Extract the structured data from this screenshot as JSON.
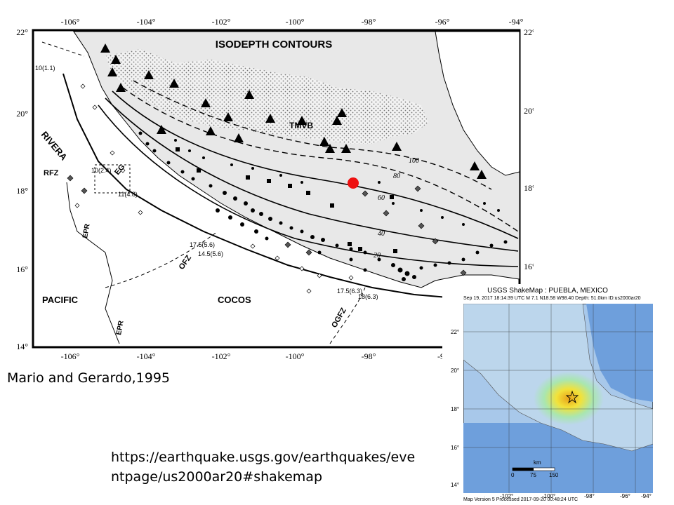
{
  "map_main": {
    "title": "ISODEPTH CONTOURS",
    "top_lon_ticks": [
      "-106°",
      "-104°",
      "-102°",
      "-100°",
      "-98°",
      "-96°",
      "-94°"
    ],
    "bottom_lon_ticks": [
      "-106°",
      "-104°",
      "-102°",
      "-100°",
      "-98°",
      "-9"
    ],
    "left_lat_ticks": [
      "22°",
      "20°",
      "18°",
      "16°",
      "14°"
    ],
    "right_lat_ticks": [
      "22°",
      "20°",
      "18°",
      "16°"
    ],
    "region_labels": {
      "tmvb": "TMVB",
      "rivera": "RIVERA",
      "rfz": "RFZ",
      "eg": "EG",
      "epr_north": "EPR",
      "epr_south": "EPR",
      "ofz": "OFZ",
      "ogfz": "OGFZ",
      "pacific": "PACIFIC",
      "cocos": "COCOS"
    },
    "plate_age_labels": {
      "a1": "10(1.1)",
      "a2": "10(2.4)",
      "a3": "11(4.8)",
      "a4": "17.5(5.6)",
      "a5": "14.5(5.6)",
      "a6": "17.5(6.3)",
      "a7": "18(6.3)"
    },
    "contour_labels": [
      "20",
      "40",
      "60",
      "80",
      "100"
    ],
    "marker_color": "#ee1111"
  },
  "caption": "Mario and Gerardo,1995",
  "url_line1": "https://earthquake.usgs.gov/earthquakes/eve",
  "url_line2": "ntpage/us2000ar20#shakemap",
  "shakemap": {
    "title": "USGS ShakeMap : PUEBLA, MEXICO",
    "subtitle": "Sep 19, 2017 18:14:39 UTC   M 7.1   N18.58 W98.40   Depth: 51.0km   ID:us2000ar20",
    "lat_ticks": [
      "22°",
      "20°",
      "18°",
      "16°",
      "14°"
    ],
    "lon_ticks": [
      "-102°",
      "-100°",
      "-98°",
      "-96°",
      "-94°"
    ],
    "scale_unit": "km",
    "scale_ticks": [
      "0",
      "75",
      "150"
    ],
    "footer": "Map Version 5 Processed 2017-09-20 00:48:24 UTC"
  }
}
